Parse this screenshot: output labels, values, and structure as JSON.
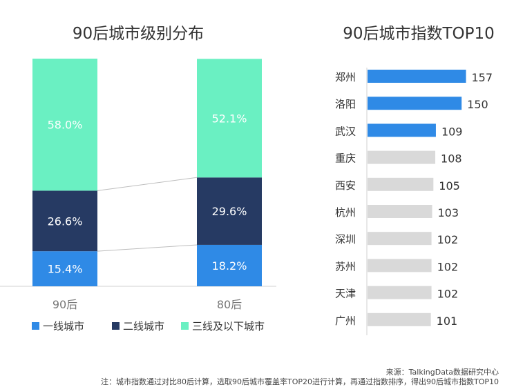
{
  "chart_data": [
    {
      "type": "bar",
      "stacked": true,
      "title": "90后城市级别分布",
      "categories": [
        "90后",
        "80后"
      ],
      "series": [
        {
          "name": "一线城市",
          "color": "#2f8ae6",
          "values": [
            15.4,
            18.2
          ],
          "labels": [
            "15.4%",
            "18.2%"
          ]
        },
        {
          "name": "二线城市",
          "color": "#263a63",
          "values": [
            26.6,
            29.6
          ],
          "labels": [
            "26.6%",
            "29.6%"
          ]
        },
        {
          "name": "三线及以下城市",
          "color": "#6af0c2",
          "values": [
            58.0,
            52.1
          ],
          "labels": [
            "58.0%",
            "52.1%"
          ]
        }
      ],
      "ylim": [
        0,
        100
      ],
      "legend": "bottom"
    },
    {
      "type": "bar",
      "orientation": "horizontal",
      "title": "90后城市指数TOP10",
      "categories": [
        "郑州",
        "洛阳",
        "武汉",
        "重庆",
        "西安",
        "杭州",
        "深圳",
        "苏州",
        "天津",
        "广州"
      ],
      "values": [
        157,
        150,
        109,
        108,
        105,
        103,
        102,
        102,
        102,
        101
      ],
      "highlight_count": 3,
      "highlight_color": "#2f8ae6",
      "other_color": "#d9d9d9"
    }
  ],
  "footer": {
    "source": "来源：TalkingData数据研究中心",
    "note": "注：城市指数通过对比80后计算，选取90后城市覆盖率TOP20进行计算，再通过指数排序，得出90后城市指数TOP10"
  }
}
